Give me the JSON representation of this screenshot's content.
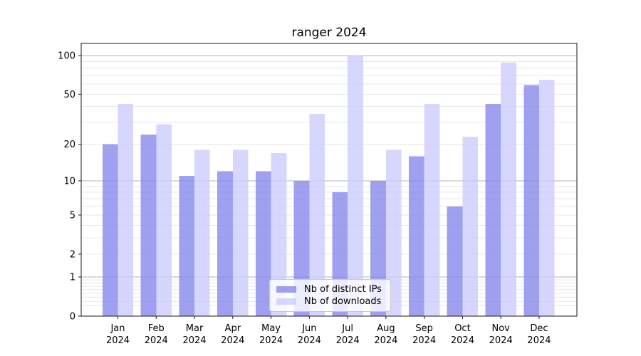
{
  "title": "ranger 2024",
  "legend": {
    "items": [
      {
        "label": "Nb of distinct IPs"
      },
      {
        "label": "Nb of downloads"
      }
    ]
  },
  "colors": {
    "bar_distinct_ips": "rgba(136,136,238,0.8)",
    "bar_downloads": "rgba(204,204,255,0.8)",
    "grid_major": "#b3b3b3",
    "grid_minor": "#e7e7e7",
    "axis": "#1a1a1a",
    "background": "#ffffff"
  },
  "chart_data": {
    "type": "bar",
    "title": "ranger 2024",
    "categories": [
      "Jan 2024",
      "Feb 2024",
      "Mar 2024",
      "Apr 2024",
      "May 2024",
      "Jun 2024",
      "Jul 2024",
      "Aug 2024",
      "Sep 2024",
      "Oct 2024",
      "Nov 2024",
      "Dec 2024"
    ],
    "series": [
      {
        "name": "Nb of distinct IPs",
        "color": "rgba(136,136,238,0.8)",
        "values": [
          20,
          24,
          11,
          12,
          12,
          10,
          8,
          10,
          16,
          6,
          42,
          59
        ]
      },
      {
        "name": "Nb of downloads",
        "color": "rgba(204,204,255,0.8)",
        "values": [
          42,
          29,
          18,
          18,
          17,
          35,
          100,
          18,
          42,
          23,
          88,
          65
        ]
      }
    ],
    "xlabel": "",
    "ylabel": "",
    "yscale": "log10(1+x)",
    "y_ticks": [
      0,
      1,
      2,
      5,
      10,
      20,
      50,
      100
    ],
    "ylim": [
      0,
      125
    ],
    "grid": true,
    "legend_position": "lower center"
  }
}
